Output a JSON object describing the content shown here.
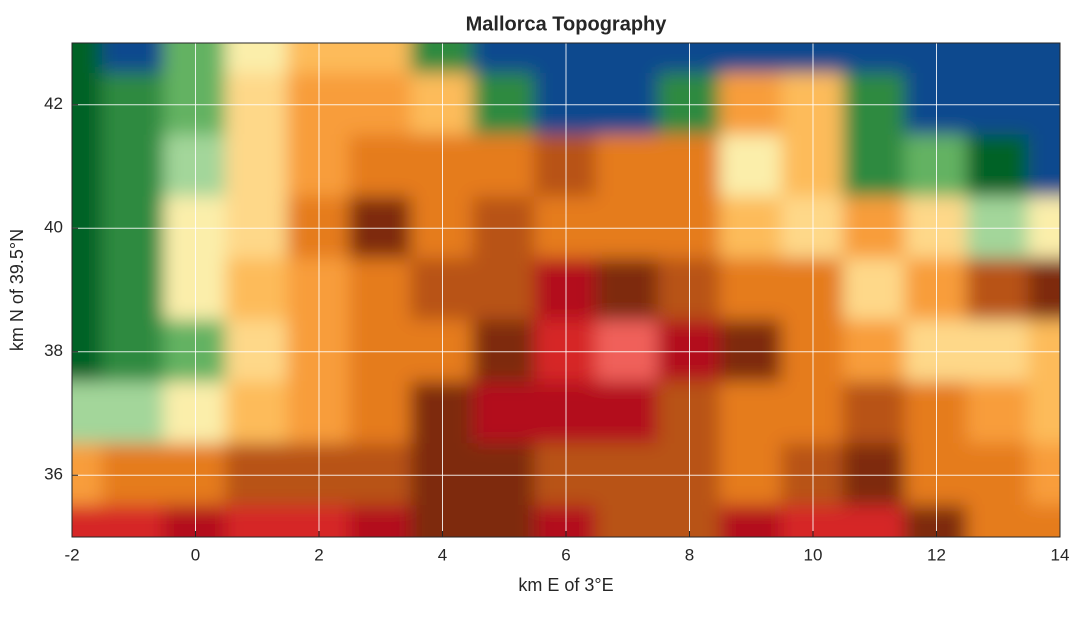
{
  "chart_data": {
    "type": "contour",
    "title": "Mallorca Topography",
    "x_label": "km E of 3°E",
    "y_label": "km N of 39.5°N",
    "xlim": [
      -2,
      14
    ],
    "ylim": [
      35,
      43
    ],
    "xticks": [
      -2,
      0,
      2,
      4,
      6,
      8,
      10,
      12,
      14
    ],
    "yticks": [
      36,
      38,
      40,
      42
    ],
    "grid": true,
    "x": [
      -2,
      -1,
      0,
      1,
      2,
      3,
      4,
      5,
      6,
      7,
      8,
      9,
      10,
      11,
      12,
      13,
      14
    ],
    "y": [
      43,
      42,
      41,
      40,
      39,
      38,
      37,
      36,
      35
    ],
    "z": [
      [
        1,
        0,
        3,
        5,
        7,
        7,
        2,
        0,
        0,
        0,
        0,
        0,
        0,
        0,
        0,
        0,
        0
      ],
      [
        1,
        2,
        3,
        6,
        8,
        8,
        7,
        2,
        0,
        0,
        2,
        8,
        7,
        2,
        0,
        0,
        0
      ],
      [
        1,
        2,
        4,
        6,
        8,
        9,
        9,
        9,
        10,
        9,
        9,
        5,
        7,
        2,
        3,
        1,
        0
      ],
      [
        1,
        2,
        5,
        6,
        9,
        11,
        9,
        10,
        9,
        9,
        9,
        7,
        6,
        8,
        6,
        4,
        5
      ],
      [
        1,
        2,
        5,
        7,
        8,
        9,
        10,
        10,
        12,
        11,
        10,
        9,
        9,
        6,
        8,
        10,
        11
      ],
      [
        1,
        2,
        3,
        6,
        8,
        9,
        9,
        11,
        13,
        14,
        12,
        11,
        9,
        8,
        6,
        6,
        7
      ],
      [
        4,
        4,
        5,
        7,
        8,
        9,
        11,
        12,
        12,
        12,
        10,
        9,
        9,
        10,
        9,
        8,
        7
      ],
      [
        8,
        9,
        9,
        10,
        10,
        10,
        11,
        11,
        10,
        10,
        10,
        9,
        10,
        11,
        9,
        9,
        8
      ],
      [
        13,
        13,
        12,
        13,
        13,
        12,
        11,
        11,
        12,
        10,
        10,
        12,
        13,
        13,
        11,
        9,
        9
      ]
    ],
    "colors": [
      "#08488e",
      "#006228",
      "#2f8a3f",
      "#63b262",
      "#a3d69a",
      "#fbeeaa",
      "#fed889",
      "#fdbb5a",
      "#f89d3a",
      "#e57b1e",
      "#b85312",
      "#7e2a0a",
      "#b30f1a",
      "#d62828",
      "#f0605a",
      "#fbb4ae"
    ]
  }
}
